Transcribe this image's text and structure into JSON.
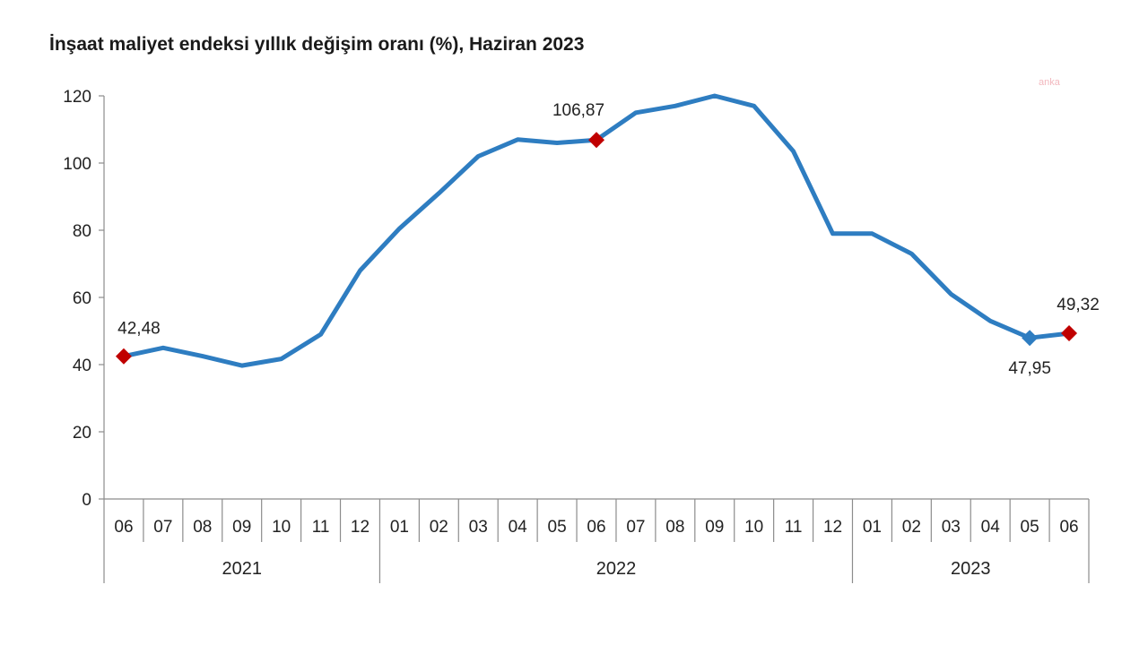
{
  "chart_data": {
    "type": "line",
    "title": "İnşaat maliyet endeksi yıllık değişim oranı (%), Haziran 2023",
    "watermark": "anka",
    "categories": [
      "06",
      "07",
      "08",
      "09",
      "10",
      "11",
      "12",
      "01",
      "02",
      "03",
      "04",
      "05",
      "06",
      "07",
      "08",
      "09",
      "10",
      "11",
      "12",
      "01",
      "02",
      "03",
      "04",
      "05",
      "06"
    ],
    "year_groups": [
      {
        "label": "2021",
        "start": 0,
        "end": 6
      },
      {
        "label": "2022",
        "start": 7,
        "end": 18
      },
      {
        "label": "2023",
        "start": 19,
        "end": 24
      }
    ],
    "series": [
      {
        "values": [
          42.48,
          45,
          42.5,
          39.7,
          41.7,
          49,
          68,
          80.5,
          91,
          102,
          107,
          106,
          106.87,
          115,
          117,
          120,
          117,
          103.5,
          79,
          79,
          73,
          61,
          53,
          47.95,
          49.32
        ],
        "color": "#2e7dc1"
      }
    ],
    "markers": [
      {
        "index": 0,
        "label": "42,48",
        "color": "#c00000",
        "label_pos": "above"
      },
      {
        "index": 12,
        "label": "106,87",
        "color": "#c00000",
        "label_pos": "above-left"
      },
      {
        "index": 23,
        "label": "47,95",
        "color": "#2e7dc1",
        "label_pos": "below"
      },
      {
        "index": 24,
        "label": "49,32",
        "color": "#c00000",
        "label_pos": "above"
      }
    ],
    "yticks": [
      0,
      20,
      40,
      60,
      80,
      100,
      120
    ],
    "ylim": [
      0,
      120
    ],
    "xlabel": "",
    "ylabel": "",
    "grid": false,
    "legend": "none"
  }
}
